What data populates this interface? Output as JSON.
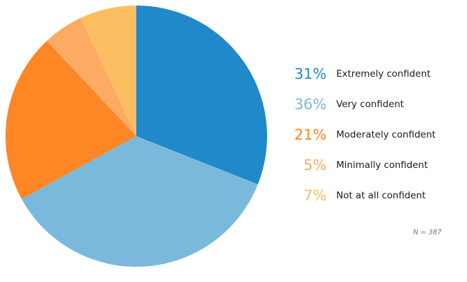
{
  "chart_data": {
    "type": "pie",
    "title": "",
    "categories": [
      "Extremely confident",
      "Very confident",
      "Moderately confident",
      "Minimally confident",
      "Not at all confident"
    ],
    "values": [
      31,
      36,
      21,
      5,
      7
    ],
    "value_labels": [
      "31%",
      "36%",
      "21%",
      "5%",
      "7%"
    ],
    "colors": [
      "#2089c9",
      "#7ab9dc",
      "#fd8625",
      "#fcaa64",
      "#fcbe60"
    ],
    "legend_placement": "right",
    "note": "N = 387"
  }
}
